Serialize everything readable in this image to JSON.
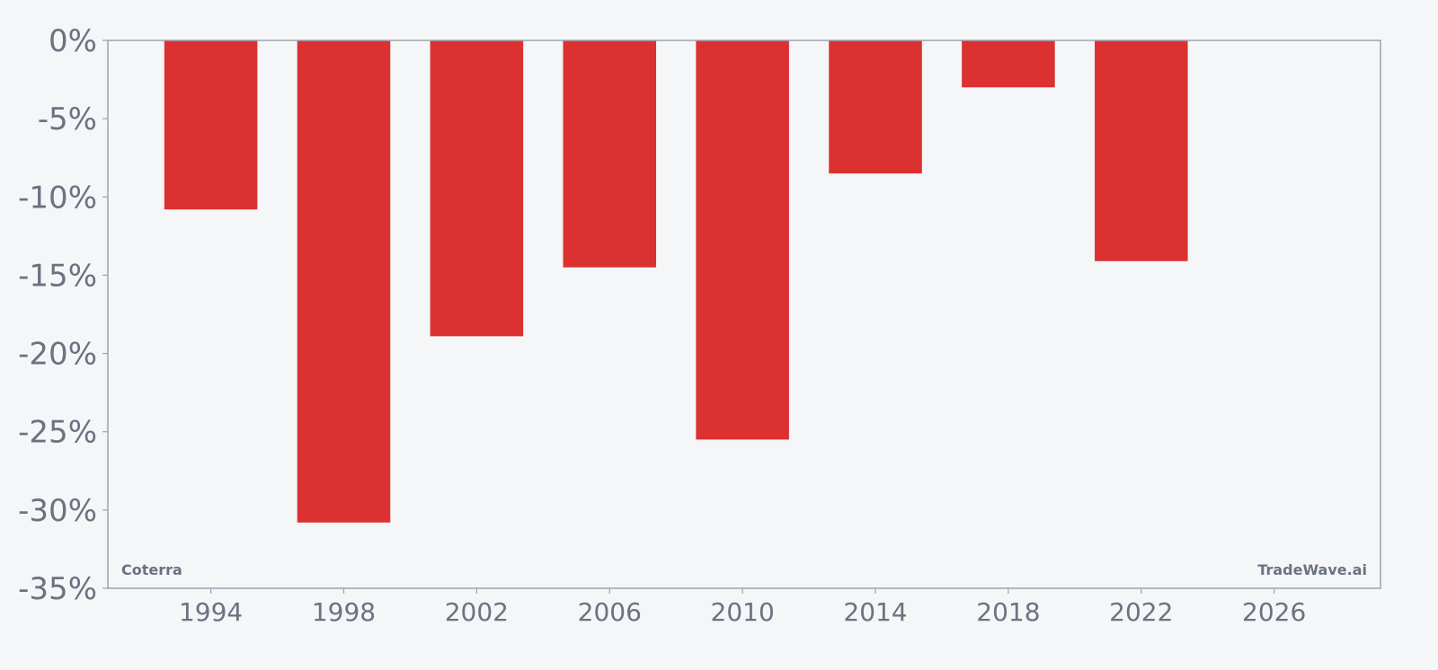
{
  "chart_data": {
    "type": "bar",
    "x": [
      1994,
      1998,
      2002,
      2006,
      2010,
      2014,
      2018,
      2022
    ],
    "values": [
      -10.8,
      -30.8,
      -18.9,
      -14.5,
      -25.5,
      -8.5,
      -3.0,
      -14.1
    ],
    "xlim": [
      1990.9,
      2029.2
    ],
    "ylim": [
      -35,
      0
    ],
    "x_ticks": [
      1994,
      1998,
      2002,
      2006,
      2010,
      2014,
      2018,
      2022,
      2026
    ],
    "y_ticks": [
      0,
      -5,
      -10,
      -15,
      -20,
      -25,
      -30,
      -35
    ],
    "y_tick_suffix": "%",
    "bar_width_years": 2.8,
    "grid": false,
    "bar_color": "#dc3131",
    "axis_color": "#9ca3af",
    "text_color": "#6b7280",
    "background": "#f4f6f8"
  },
  "watermarks": {
    "left": "Coterra",
    "right": "TradeWave.ai"
  }
}
